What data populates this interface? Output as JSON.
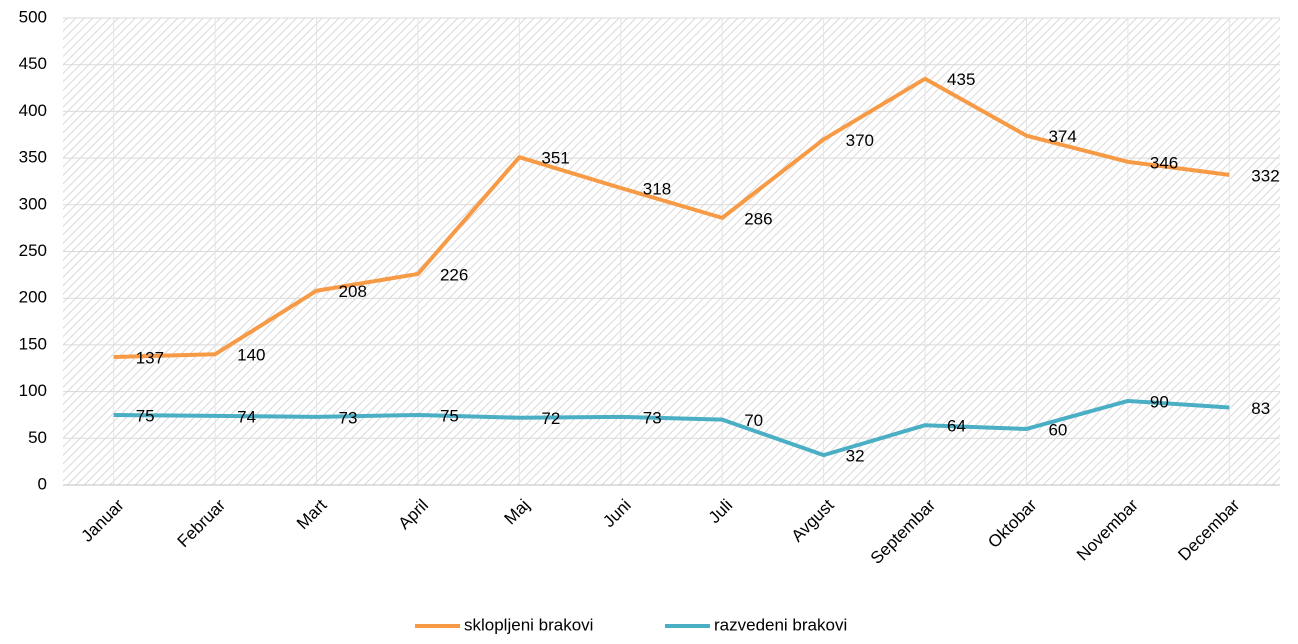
{
  "chart_data": {
    "type": "line",
    "categories": [
      "Januar",
      "Februar",
      "Mart",
      "April",
      "Maj",
      "Juni",
      "Juli",
      "Avgust",
      "Septembar",
      "Oktobar",
      "Novembar",
      "Decembar"
    ],
    "series": [
      {
        "name": "sklopljeni brakovi",
        "color": "#f79a45",
        "values": [
          137,
          140,
          208,
          226,
          351,
          318,
          286,
          370,
          435,
          374,
          346,
          332
        ]
      },
      {
        "name": "razvedeni brakovi",
        "color": "#4aaec4",
        "values": [
          75,
          74,
          73,
          75,
          72,
          73,
          70,
          32,
          64,
          60,
          90,
          83
        ]
      }
    ],
    "ylim": [
      0,
      500
    ],
    "yticks": [
      0,
      50,
      100,
      150,
      200,
      250,
      300,
      350,
      400,
      450,
      500
    ],
    "grid": true,
    "legend": "bottom"
  }
}
